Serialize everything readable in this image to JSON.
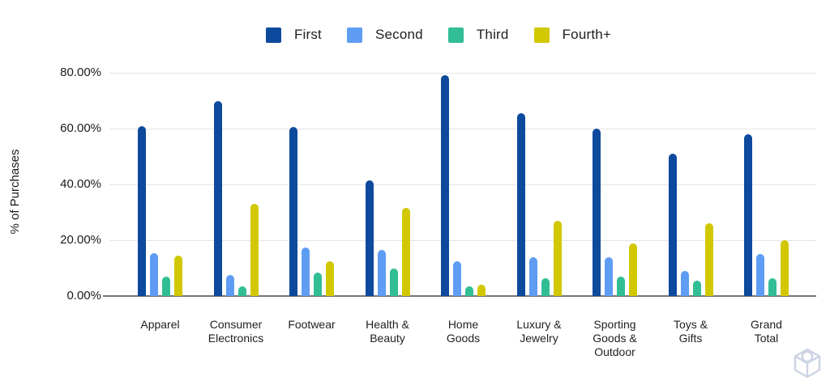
{
  "chart_data": {
    "type": "bar",
    "title": "",
    "xlabel": "",
    "ylabel": "% of Purchases",
    "ylim": [
      0,
      80
    ],
    "grid": true,
    "legend_position": "top-center",
    "ytick_labels_top_to_bottom": [
      "80.00%",
      "60.00%",
      "40.00%",
      "20.00%",
      "0.00%"
    ],
    "categories": [
      "Apparel",
      "Consumer Electronics",
      "Footwear",
      "Health & Beauty",
      "Home Goods",
      "Luxury & Jewelry",
      "Sporting Goods & Outdoor",
      "Toys & Gifts",
      "Grand Total"
    ],
    "category_display": [
      "Apparel",
      "Consumer\nElectronics",
      "Footwear",
      "Health &\nBeauty",
      "Home\nGoods",
      "Luxury &\nJewelry",
      "Sporting\nGoods &\nOutdoor",
      "Toys &\nGifts",
      "Grand\nTotal"
    ],
    "series": [
      {
        "name": "First",
        "color": "#0d4a9d",
        "values": [
          61,
          70,
          60.5,
          41.5,
          79,
          65.5,
          60,
          51,
          58
        ]
      },
      {
        "name": "Second",
        "color": "#5e9df3",
        "values": [
          15.5,
          7.5,
          17.5,
          16.5,
          12.5,
          14,
          14,
          9,
          15
        ]
      },
      {
        "name": "Third",
        "color": "#31be95",
        "values": [
          7,
          3.5,
          8.5,
          10,
          3.5,
          6.5,
          7,
          5.5,
          6.5
        ]
      },
      {
        "name": "Fourth+",
        "color": "#d1c802",
        "values": [
          14.5,
          33,
          12.5,
          31.5,
          4,
          27,
          19,
          26,
          20
        ]
      }
    ]
  },
  "colors": {
    "gridline": "#e3e3e3",
    "axis_baseline": "#757575",
    "text": "#1f1f1f",
    "watermark": "#c9d1e2"
  },
  "watermark": {
    "icon_name": "cube-watermark-icon"
  }
}
